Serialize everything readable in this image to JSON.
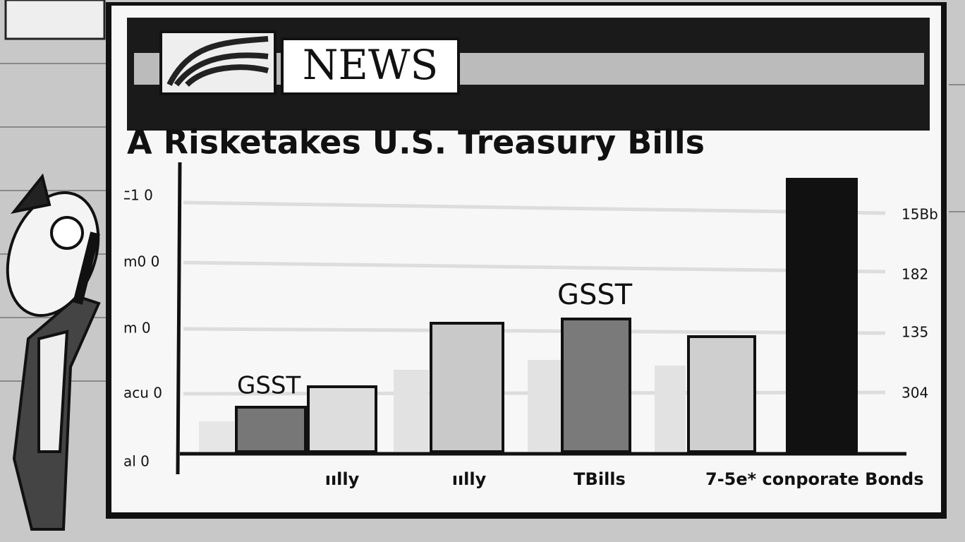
{
  "screen": {
    "logo": "NEWS",
    "title": "A Risketakes U.S. Treasury Bills",
    "left_labels": [
      "ﾆ1 0",
      "m0 0",
      "m 0",
      "acu 0",
      "al 0"
    ],
    "right_labels": [
      "15Bb",
      "182",
      "135",
      "304"
    ],
    "bar_labels": [
      "GSST",
      "GSST"
    ],
    "x_labels": [
      "ıılly",
      "ıılly",
      "TBills",
      "7-5e* conporate Bonds"
    ]
  }
}
